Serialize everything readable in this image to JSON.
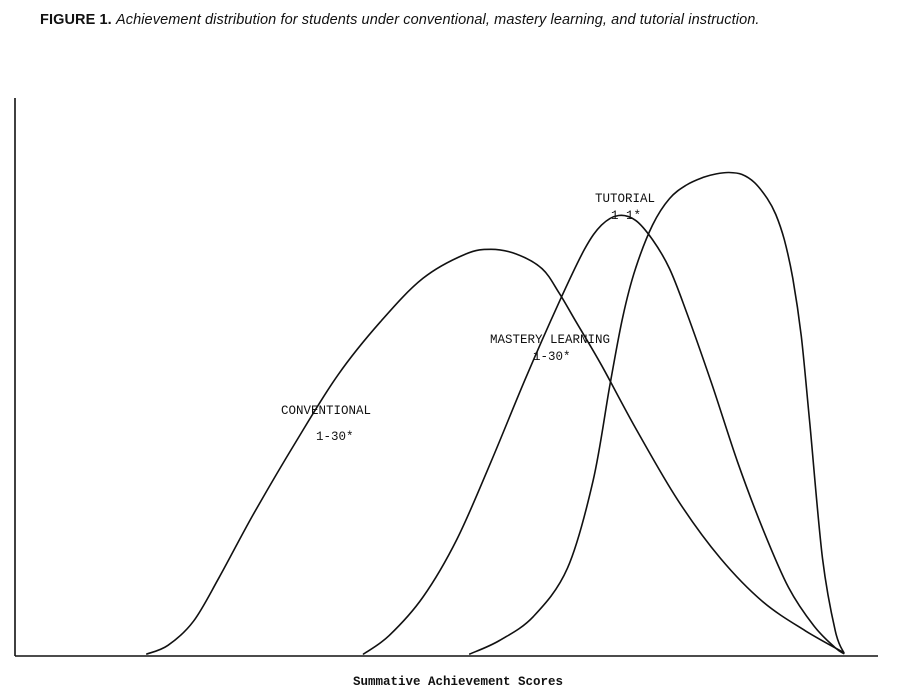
{
  "caption": {
    "lead": "FIGURE 1.",
    "text": "Achievement distribution for students under conventional, mastery learning, and tutorial instruction."
  },
  "chart_data": {
    "type": "line",
    "title": "",
    "xlabel": "Summative Achievement Scores",
    "ylabel": "",
    "xlim": [
      0,
      100
    ],
    "ylim": [
      0,
      100
    ],
    "grid": false,
    "x_ticks": [],
    "y_ticks": [],
    "series": [
      {
        "name": "CONVENTIONAL",
        "annotation": "1-30*",
        "x": [
          15.5,
          18,
          21,
          24,
          28,
          33,
          38,
          43,
          48,
          53,
          56,
          59,
          62,
          64,
          66,
          69,
          73,
          78,
          83,
          88,
          93,
          97.5
        ],
        "y": [
          0.2,
          2,
          7,
          16,
          29,
          44,
          58,
          69,
          78,
          83,
          84,
          83,
          80,
          75,
          69,
          60,
          47,
          32,
          20,
          11,
          5,
          0.5
        ]
      },
      {
        "name": "MASTERY LEARNING",
        "annotation": "1-30*",
        "x": [
          41,
          44,
          48,
          52,
          56,
          60,
          64,
          67,
          69,
          71,
          73,
          75,
          77,
          79,
          82,
          85,
          88,
          91,
          94,
          96.5,
          97.5
        ],
        "y": [
          0.2,
          4,
          12,
          24,
          40,
          57,
          73,
          84,
          89,
          91,
          90,
          86,
          80,
          71,
          56,
          40,
          26,
          14,
          6,
          1.5,
          0.3
        ]
      },
      {
        "name": "TUTORIAL",
        "annotation": "1-1*",
        "x": [
          53.5,
          57,
          61,
          65,
          68,
          70,
          71.5,
          73,
          75,
          77,
          79,
          81,
          82.5,
          84,
          85.5,
          87,
          88.5,
          89.5,
          90.5,
          91.5,
          92.5,
          93.5,
          95,
          96.5,
          97.5
        ],
        "y": [
          0.2,
          3,
          8,
          18,
          36,
          56,
          70,
          80,
          89,
          94.5,
          97.3,
          98.9,
          99.6,
          99.9,
          99.5,
          97.8,
          94.5,
          91.2,
          86,
          78,
          66,
          48,
          20,
          5,
          0.5
        ]
      }
    ]
  }
}
